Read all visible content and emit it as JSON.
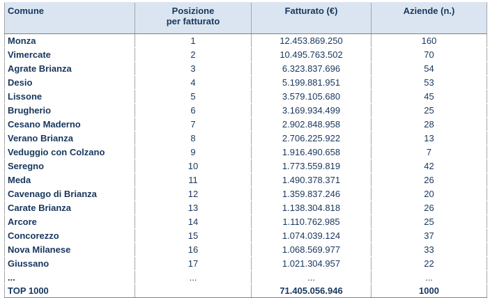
{
  "table": {
    "headers": {
      "comune": "Comune",
      "posizione_line1": "Posizione",
      "posizione_line2": "per fatturato",
      "fatturato": "Fatturato (€)",
      "aziende": "Aziende (n.)"
    },
    "rows": [
      {
        "comune": "Monza",
        "posizione": "1",
        "fatturato": "12.453.869.250",
        "aziende": "160"
      },
      {
        "comune": "Vimercate",
        "posizione": "2",
        "fatturato": "10.495.763.502",
        "aziende": "70"
      },
      {
        "comune": "Agrate Brianza",
        "posizione": "3",
        "fatturato": "6.323.837.696",
        "aziende": "54"
      },
      {
        "comune": "Desio",
        "posizione": "4",
        "fatturato": "5.199.881.951",
        "aziende": "53"
      },
      {
        "comune": "Lissone",
        "posizione": "5",
        "fatturato": "3.579.105.680",
        "aziende": "45"
      },
      {
        "comune": "Brugherio",
        "posizione": "6",
        "fatturato": "3.169.934.499",
        "aziende": "25"
      },
      {
        "comune": "Cesano Maderno",
        "posizione": "7",
        "fatturato": "2.902.848.958",
        "aziende": "28"
      },
      {
        "comune": "Verano Brianza",
        "posizione": "8",
        "fatturato": "2.706.225.922",
        "aziende": "13"
      },
      {
        "comune": "Veduggio con Colzano",
        "posizione": "9",
        "fatturato": "1.916.490.658",
        "aziende": "7"
      },
      {
        "comune": "Seregno",
        "posizione": "10",
        "fatturato": "1.773.559.819",
        "aziende": "42"
      },
      {
        "comune": "Meda",
        "posizione": "11",
        "fatturato": "1.490.378.371",
        "aziende": "26"
      },
      {
        "comune": "Cavenago di Brianza",
        "posizione": "12",
        "fatturato": "1.359.837.246",
        "aziende": "20"
      },
      {
        "comune": "Carate Brianza",
        "posizione": "13",
        "fatturato": "1.138.304.818",
        "aziende": "26"
      },
      {
        "comune": "Arcore",
        "posizione": "14",
        "fatturato": "1.110.762.985",
        "aziende": "25"
      },
      {
        "comune": "Concorezzo",
        "posizione": "15",
        "fatturato": "1.074.039.124",
        "aziende": "37"
      },
      {
        "comune": "Nova Milanese",
        "posizione": "16",
        "fatturato": "1.068.569.977",
        "aziende": "33"
      },
      {
        "comune": "Giussano",
        "posizione": "17",
        "fatturato": "1.021.304.957",
        "aziende": "22"
      }
    ],
    "ellipsis": {
      "comune": "...",
      "posizione": "...",
      "fatturato": "...",
      "aziende": "..."
    },
    "total": {
      "comune": "TOP 1000",
      "posizione": "",
      "fatturato": "71.405.056.946",
      "aziende": "1000"
    }
  }
}
